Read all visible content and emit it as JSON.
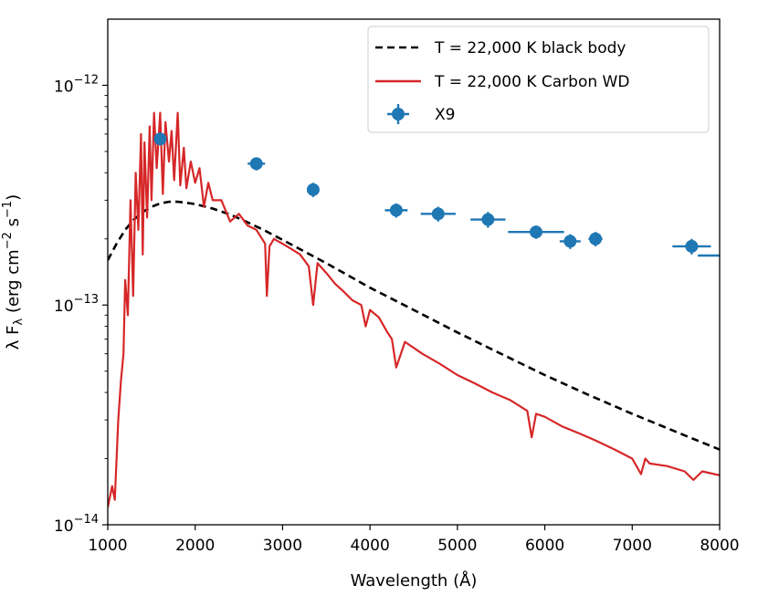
{
  "chart_data": {
    "type": "line",
    "title": "",
    "xlabel": "Wavelength (Å)",
    "ylabel": "λ F_λ (erg cm⁻² s⁻¹)",
    "ylabel_parts": {
      "pre": "λ F",
      "sub": "λ",
      "mid": " (erg cm",
      "sup1": "−2",
      "mid2": " s",
      "sup2": "−1",
      "post": ")"
    },
    "xlim": [
      1000,
      8000
    ],
    "ylim": [
      1e-14,
      2e-12
    ],
    "yscale": "log",
    "grid": false,
    "legend_position": "top-right",
    "x_ticks": [
      {
        "value": 1000,
        "label": "1000"
      },
      {
        "value": 2000,
        "label": "2000"
      },
      {
        "value": 3000,
        "label": "3000"
      },
      {
        "value": 4000,
        "label": "4000"
      },
      {
        "value": 5000,
        "label": "5000"
      },
      {
        "value": 6000,
        "label": "6000"
      },
      {
        "value": 7000,
        "label": "7000"
      },
      {
        "value": 8000,
        "label": "8000"
      }
    ],
    "y_ticks": [
      {
        "value": 1e-14,
        "base": "10",
        "exp": "−14"
      },
      {
        "value": 1e-13,
        "base": "10",
        "exp": "−13"
      },
      {
        "value": 1e-12,
        "base": "10",
        "exp": "−12"
      }
    ],
    "series": [
      {
        "name": "T = 22,000 K black body",
        "style": "dashed",
        "color": "#000000",
        "x": [
          1000,
          1100,
          1200,
          1300,
          1400,
          1500,
          1600,
          1700,
          1800,
          1900,
          2000,
          2200,
          2400,
          2600,
          2800,
          3000,
          3500,
          4000,
          4500,
          5000,
          5500,
          6000,
          6500,
          7000,
          7500,
          8000
        ],
        "y": [
          1.6e-13,
          1.9e-13,
          2.2e-13,
          2.45e-13,
          2.65e-13,
          2.8e-13,
          2.9e-13,
          2.95e-13,
          2.95e-13,
          2.92e-13,
          2.88e-13,
          2.75e-13,
          2.58e-13,
          2.38e-13,
          2.18e-13,
          1.98e-13,
          1.55e-13,
          1.2e-13,
          9.5e-14,
          7.5e-14,
          6e-14,
          4.8e-14,
          3.9e-14,
          3.2e-14,
          2.65e-14,
          2.2e-14
        ]
      },
      {
        "name": "T = 22,000 K Carbon WD",
        "style": "solid",
        "color": "#d62728",
        "x": [
          1000,
          1050,
          1080,
          1120,
          1150,
          1180,
          1200,
          1230,
          1260,
          1290,
          1320,
          1350,
          1380,
          1400,
          1420,
          1450,
          1480,
          1500,
          1530,
          1560,
          1600,
          1630,
          1660,
          1700,
          1730,
          1760,
          1800,
          1830,
          1870,
          1900,
          1950,
          2000,
          2050,
          2100,
          2150,
          2200,
          2300,
          2400,
          2500,
          2600,
          2700,
          2800,
          2820,
          2850,
          2900,
          3000,
          3100,
          3200,
          3300,
          3350,
          3400,
          3500,
          3600,
          3700,
          3800,
          3900,
          3950,
          4000,
          4100,
          4200,
          4250,
          4300,
          4400,
          4600,
          4800,
          5000,
          5200,
          5400,
          5600,
          5800,
          5850,
          5900,
          6000,
          6200,
          6400,
          6500,
          6600,
          6800,
          7000,
          7100,
          7150,
          7200,
          7400,
          7600,
          7700,
          7800,
          8000
        ],
        "y": [
          1.2e-14,
          1.5e-14,
          1.3e-14,
          3e-14,
          4.5e-14,
          6e-14,
          1.3e-13,
          9e-14,
          3e-13,
          1.1e-13,
          4e-13,
          2.2e-13,
          6e-13,
          1.7e-13,
          5.5e-13,
          2.5e-13,
          6.5e-13,
          3e-13,
          7.5e-13,
          4.2e-13,
          7.5e-13,
          3.2e-13,
          6.8e-13,
          4.5e-13,
          6.2e-13,
          3.7e-13,
          7.5e-13,
          3.5e-13,
          5.2e-13,
          3.4e-13,
          4.5e-13,
          3.6e-13,
          4.2e-13,
          2.8e-13,
          3.6e-13,
          3e-13,
          3e-13,
          2.4e-13,
          2.6e-13,
          2.3e-13,
          2.2e-13,
          1.9e-13,
          1.1e-13,
          1.85e-13,
          2e-13,
          1.9e-13,
          1.8e-13,
          1.7e-13,
          1.5e-13,
          1e-13,
          1.55e-13,
          1.4e-13,
          1.25e-13,
          1.15e-13,
          1.05e-13,
          1e-13,
          8e-14,
          9.5e-14,
          8.8e-14,
          7.5e-14,
          7e-14,
          5.2e-14,
          6.8e-14,
          6e-14,
          5.4e-14,
          4.8e-14,
          4.4e-14,
          4e-14,
          3.7e-14,
          3.3e-14,
          2.5e-14,
          3.2e-14,
          3.1e-14,
          2.8e-14,
          2.6e-14,
          2.5e-14,
          2.4e-14,
          2.2e-14,
          2e-14,
          1.7e-14,
          2e-14,
          1.9e-14,
          1.85e-14,
          1.75e-14,
          1.6e-14,
          1.75e-14,
          1.68e-14
        ]
      }
    ],
    "points": {
      "name": "X9",
      "color": "#1f77b4",
      "data": [
        {
          "x": 1600,
          "y": 5.7e-13,
          "xerr": 0,
          "yerr": 3e-14
        },
        {
          "x": 2700,
          "y": 4.4e-13,
          "xerr": 100,
          "yerr": 3e-14
        },
        {
          "x": 3350,
          "y": 3.35e-13,
          "xerr": 0,
          "yerr": 2.5e-14
        },
        {
          "x": 4300,
          "y": 2.7e-13,
          "xerr": 130,
          "yerr": 2e-14
        },
        {
          "x": 4780,
          "y": 2.6e-13,
          "xerr": 200,
          "yerr": 2e-14
        },
        {
          "x": 5350,
          "y": 2.45e-13,
          "xerr": 200,
          "yerr": 2e-14
        },
        {
          "x": 5900,
          "y": 2.15e-13,
          "xerr": 320,
          "yerr": 1.5e-14
        },
        {
          "x": 6290,
          "y": 1.95e-13,
          "xerr": 120,
          "yerr": 1.5e-14
        },
        {
          "x": 6580,
          "y": 2e-13,
          "xerr": 80,
          "yerr": 1.5e-14
        },
        {
          "x": 7680,
          "y": 1.85e-13,
          "xerr": 220,
          "yerr": 1.5e-14
        },
        {
          "x": 8000,
          "y": 1.68e-13,
          "xerr": 250,
          "yerr": 0
        }
      ]
    }
  }
}
